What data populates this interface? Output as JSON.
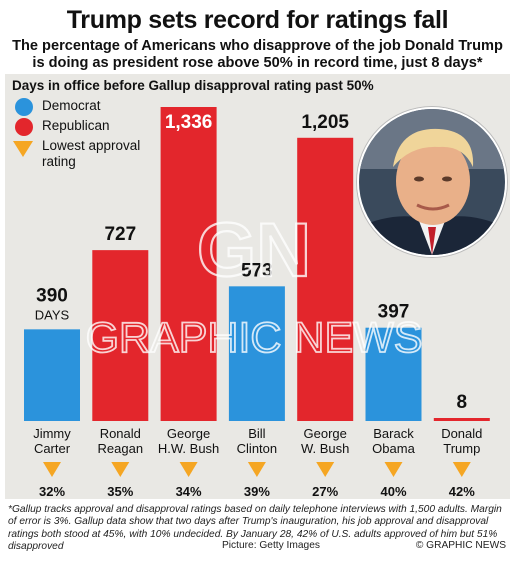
{
  "header": {
    "title": "Trump sets record for ratings fall",
    "subtitle": "The percentage of Americans who disapprove of the job Donald Trump is doing as president rose above 50% in record time, just 8 days*"
  },
  "legend": {
    "democrat": "Democrat",
    "republican": "Republican",
    "lowest": "Lowest approval rating"
  },
  "colors": {
    "democrat": "#2b93dc",
    "republican": "#e3262c",
    "lowest": "#f5a623",
    "panel": "#e9e8e4"
  },
  "chart_data": {
    "type": "bar",
    "title": "Days in office before Gallup disapproval rating past 50%",
    "categories": [
      "Jimmy Carter",
      "Ronald Reagan",
      "George H.W. Bush",
      "Bill Clinton",
      "George W. Bush",
      "Barack Obama",
      "Donald Trump"
    ],
    "category_lines": [
      [
        "Jimmy",
        "Carter"
      ],
      [
        "Ronald",
        "Reagan"
      ],
      [
        "George",
        "H.W. Bush"
      ],
      [
        "Bill",
        "Clinton"
      ],
      [
        "George",
        "W. Bush"
      ],
      [
        "Barack",
        "Obama"
      ],
      [
        "Donald",
        "Trump"
      ]
    ],
    "values": [
      390,
      727,
      1336,
      573,
      1205,
      397,
      8
    ],
    "value_labels": [
      "390",
      "727",
      "1,336",
      "573",
      "1,205",
      "397",
      "8"
    ],
    "unit_label": "DAYS",
    "party": [
      "democrat",
      "republican",
      "republican",
      "democrat",
      "republican",
      "democrat",
      "republican"
    ],
    "lowest_approval": [
      "32%",
      "35%",
      "34%",
      "39%",
      "27%",
      "40%",
      "42%"
    ],
    "ylim": [
      0,
      1336
    ]
  },
  "watermark": {
    "logo": "GN",
    "name": "GRAPHIC NEWS"
  },
  "footer": {
    "footnote": "*Gallup tracks approval and disapproval ratings based on daily telephone interviews with 1,500 adults. Margin of error is 3%. Gallup data show that two days after Trump's inauguration, his job approval and disapproval ratings both stood at 45%, with 10% undecided. By January 28, 42% of U.S. adults approved of him but 51% disapproved",
    "credit": "Picture: Getty Images",
    "copyright": "© GRAPHIC NEWS"
  }
}
